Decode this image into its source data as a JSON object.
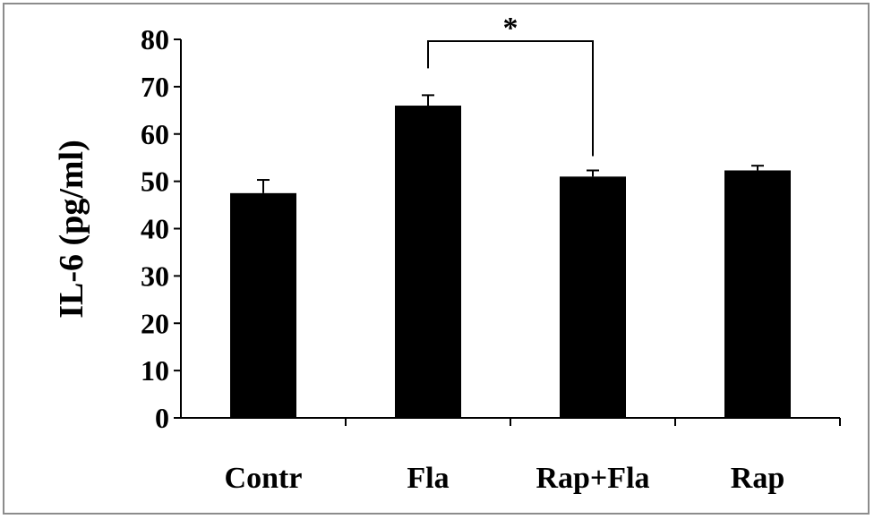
{
  "chart_data": {
    "type": "bar",
    "title": "",
    "xlabel": "",
    "ylabel": "IL-6 (pg/ml)",
    "categories": [
      "Contr",
      "Fla",
      "Rap+Fla",
      "Rap"
    ],
    "values": [
      47.5,
      66.0,
      51.0,
      52.3
    ],
    "errors": [
      2.8,
      2.2,
      1.3,
      1.0
    ],
    "ylim": [
      0,
      80
    ],
    "yticks": [
      "0",
      "10",
      "20",
      "30",
      "40",
      "50",
      "60",
      "70",
      "80"
    ],
    "grid": false,
    "legend": "none",
    "bar_color": "#000000",
    "annotation": {
      "label": "*",
      "from_category": "Fla",
      "to_category": "Rap+Fla"
    }
  }
}
